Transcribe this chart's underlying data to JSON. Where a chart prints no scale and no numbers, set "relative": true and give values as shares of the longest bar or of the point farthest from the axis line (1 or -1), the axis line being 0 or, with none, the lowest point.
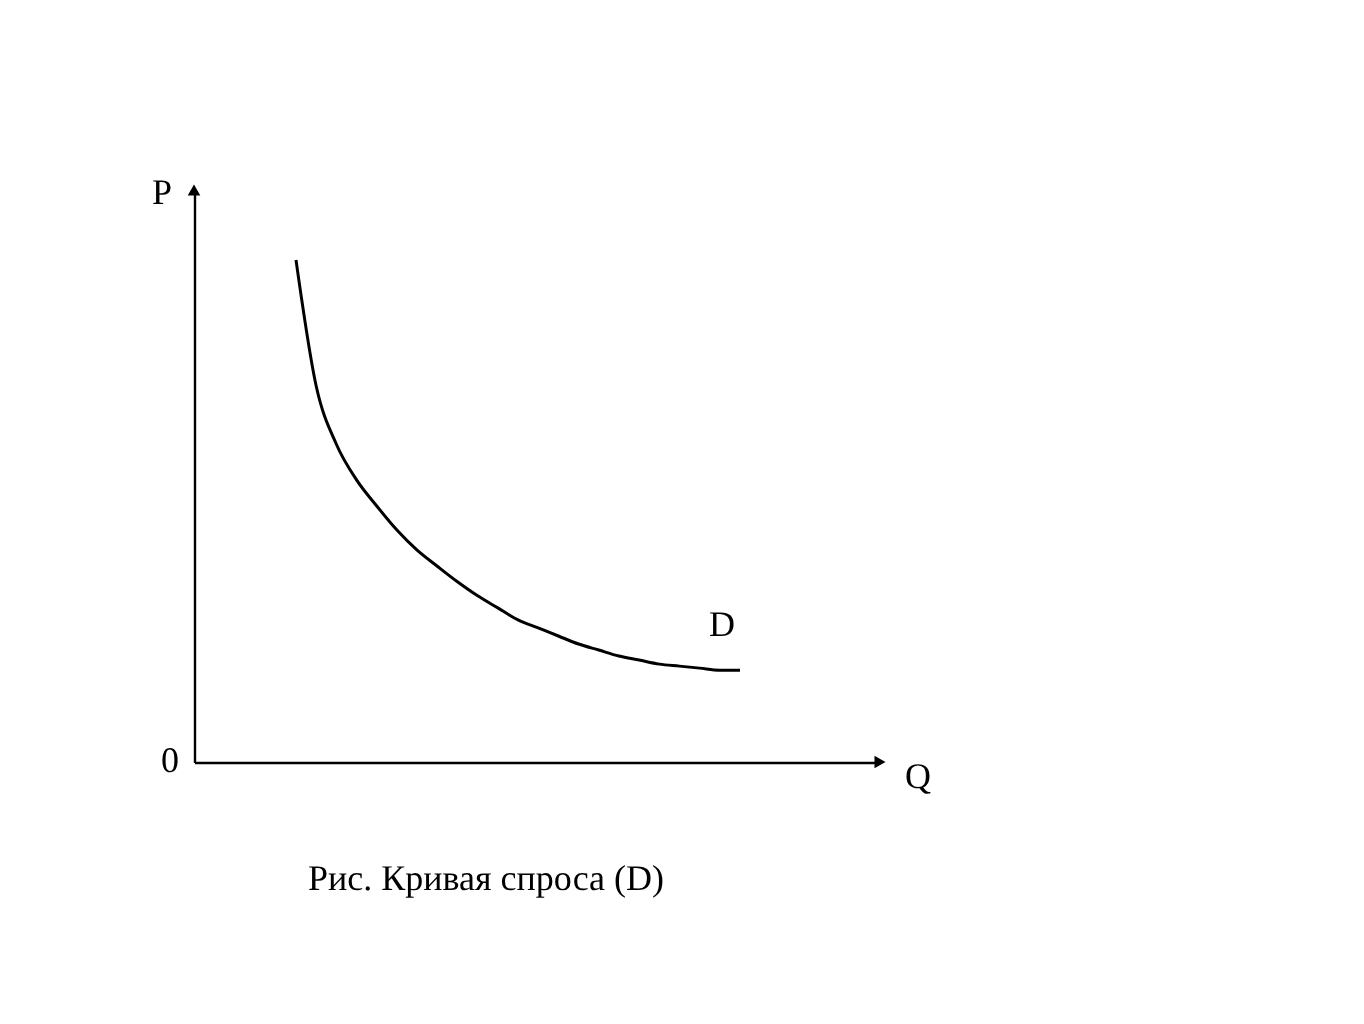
{
  "chart_data": {
    "type": "line",
    "relative": true,
    "xlabel": "Q",
    "ylabel": "P",
    "categories": [
      null,
      null,
      null,
      null,
      null,
      null,
      null,
      null,
      null,
      null,
      null,
      null,
      null,
      null,
      null,
      null,
      null,
      null,
      null,
      null,
      null,
      null,
      null
    ],
    "series": [
      {
        "color": "#000000",
        "values": [
          1.0,
          0.749,
          0.633,
          0.562,
          0.51,
          0.462,
          0.422,
          0.39,
          0.359,
          0.331,
          0.307,
          0.283,
          0.267,
          0.251,
          0.235,
          0.223,
          0.211,
          0.203,
          0.195,
          0.191,
          0.187,
          0.183,
          0.183
        ]
      }
    ],
    "annotations": [
      "0",
      "D",
      "Рис. Кривая спроса (D)"
    ],
    "grid": false,
    "marker": "none",
    "line_style": "solid"
  }
}
